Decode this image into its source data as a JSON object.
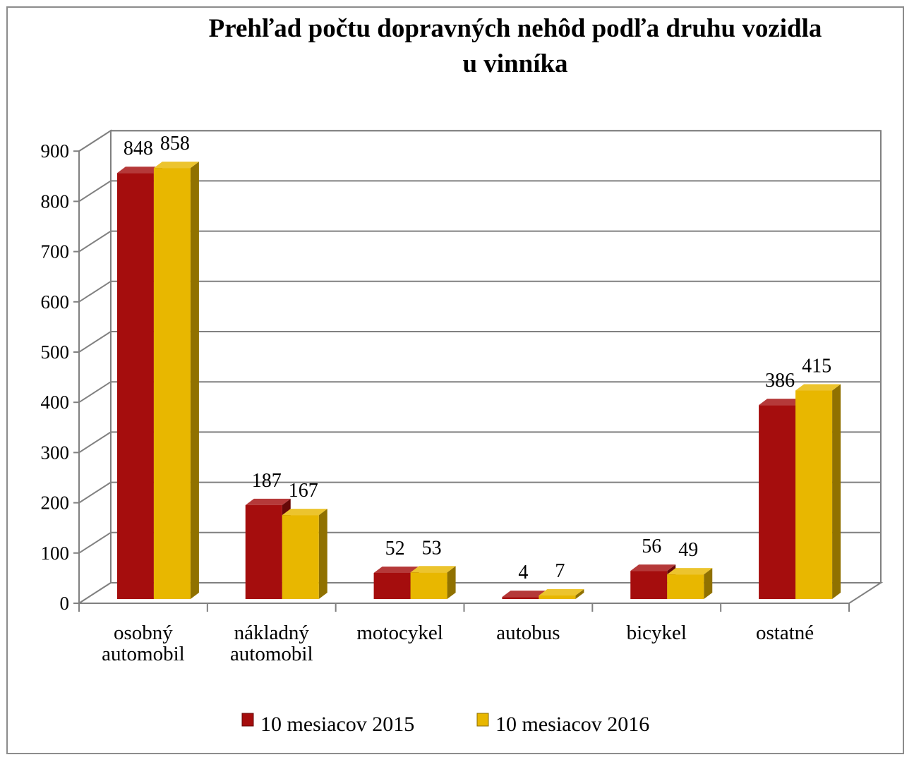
{
  "chart_data": {
    "type": "bar",
    "title": "Prehľad počtu dopravných nehôd podľa druhu vozidla u vinníka",
    "title_lines": [
      "Prehľad počtu dopravných nehôd podľa druhu vozidla",
      "u vinníka"
    ],
    "categories": [
      [
        "osobný",
        "automobil"
      ],
      [
        "nákladný",
        "automobil"
      ],
      [
        "motocykel"
      ],
      [
        "autobus"
      ],
      [
        "bicykel"
      ],
      [
        "ostatné"
      ]
    ],
    "series": [
      {
        "name": "10 mesiacov 2015",
        "color": "#a50d0d",
        "values": [
          848,
          187,
          52,
          4,
          56,
          386
        ]
      },
      {
        "name": "10 mesiacov 2016",
        "color": "#e8b700",
        "values": [
          858,
          167,
          53,
          7,
          49,
          415
        ]
      }
    ],
    "y_ticks": [
      "0",
      "100",
      "200",
      "300",
      "400",
      "500",
      "600",
      "700",
      "800",
      "900"
    ],
    "ylim": [
      0,
      900
    ],
    "grid": true,
    "legend_position": "bottom",
    "style": "3d-clustered-column"
  }
}
